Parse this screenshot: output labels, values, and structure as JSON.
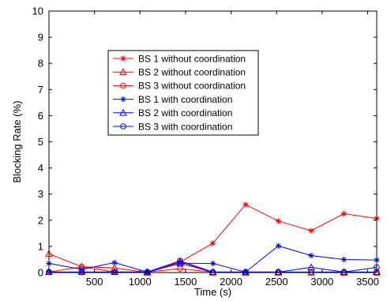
{
  "chart_data": {
    "type": "line",
    "title": "",
    "xlabel": "Time (s)",
    "ylabel": "Blocking Rate (%)",
    "xlim": [
      0,
      3600
    ],
    "ylim": [
      0,
      10
    ],
    "x_ticks": [
      500,
      1000,
      1500,
      2000,
      2500,
      3000,
      3500
    ],
    "y_ticks": [
      0,
      1,
      2,
      3,
      4,
      5,
      6,
      7,
      8,
      9,
      10
    ],
    "grid": false,
    "legend_position": "upper-center",
    "x": [
      0,
      360,
      720,
      1080,
      1440,
      1800,
      2160,
      2520,
      2880,
      3240,
      3600
    ],
    "series": [
      {
        "name": "BS 1 without coordination",
        "color": "#ff0000",
        "marker": "star",
        "values": [
          0.0,
          0.0,
          0.0,
          0.0,
          0.4,
          1.12,
          2.6,
          1.97,
          1.6,
          2.25,
          2.07
        ]
      },
      {
        "name": "BS 2 without coordination",
        "color": "#ff0000",
        "marker": "triangle",
        "values": [
          0.72,
          0.22,
          0.18,
          0.0,
          0.42,
          0.0,
          0.0,
          0.0,
          0.0,
          0.0,
          0.0
        ]
      },
      {
        "name": "BS 3 without coordination",
        "color": "#ff0000",
        "marker": "circle",
        "values": [
          0.02,
          0.22,
          0.02,
          0.02,
          0.15,
          0.02,
          0.02,
          0.02,
          0.02,
          0.02,
          0.02
        ]
      },
      {
        "name": "BS 1 with coordination",
        "color": "#0000ff",
        "marker": "star",
        "values": [
          0.35,
          0.12,
          0.38,
          0.02,
          0.35,
          0.35,
          0.02,
          1.02,
          0.65,
          0.5,
          0.48
        ]
      },
      {
        "name": "BS 2 with coordination",
        "color": "#0000ff",
        "marker": "triangle",
        "values": [
          0.02,
          0.02,
          0.02,
          0.02,
          0.35,
          0.02,
          0.02,
          0.02,
          0.2,
          0.02,
          0.02
        ]
      },
      {
        "name": "BS 3 with coordination",
        "color": "#0000ff",
        "marker": "circle",
        "values": [
          0.02,
          0.02,
          0.02,
          0.02,
          0.45,
          0.02,
          0.02,
          0.02,
          0.02,
          0.02,
          0.2
        ]
      }
    ]
  }
}
